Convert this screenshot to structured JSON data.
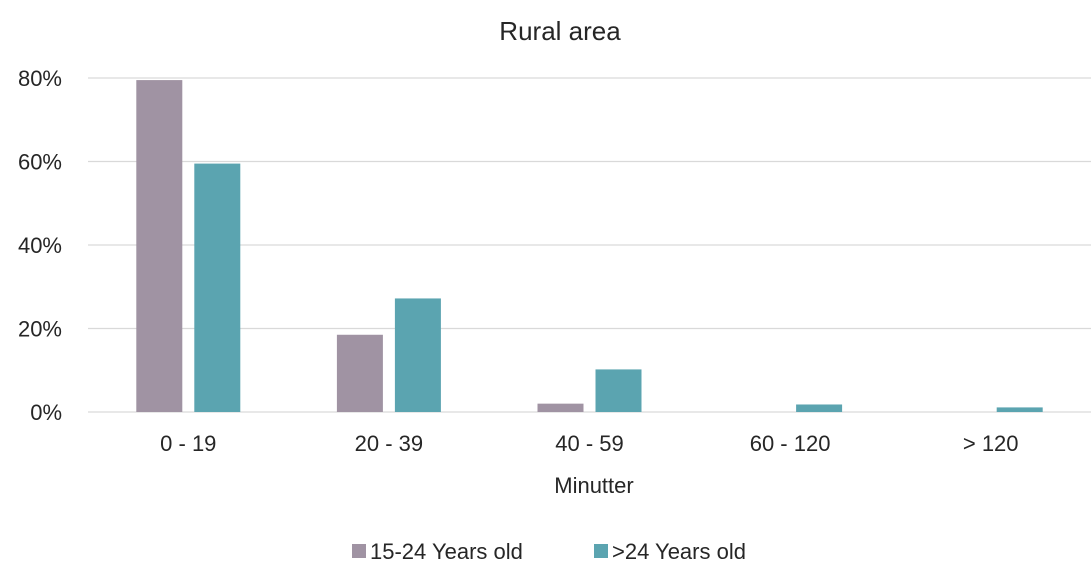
{
  "chart_data": {
    "type": "bar",
    "title": "Rural area",
    "xlabel": "Minutter",
    "ylabel": "",
    "categories": [
      "0 - 19",
      "20 - 39",
      "40 - 59",
      "60 - 120",
      "> 120"
    ],
    "series": [
      {
        "name": "15-24 Years old",
        "color": "#a093a3",
        "values": [
          79.5,
          18.5,
          2.0,
          0.0,
          0.0
        ]
      },
      {
        "name": ">24 Years old",
        "color": "#5ba4b0",
        "values": [
          59.5,
          27.2,
          10.2,
          1.8,
          1.1
        ]
      }
    ],
    "ylim": [
      0,
      80
    ],
    "yticks": [
      0,
      20,
      40,
      60,
      80
    ],
    "ytick_labels": [
      "0%",
      "20%",
      "40%",
      "60%",
      "80%"
    ],
    "grid": true,
    "legend_position": "bottom"
  }
}
